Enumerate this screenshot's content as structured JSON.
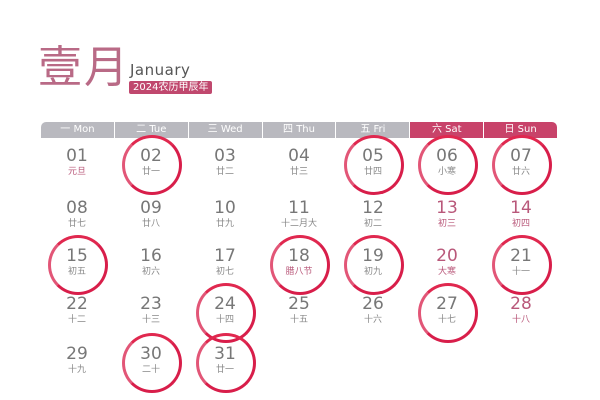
{
  "header": {
    "month_cn": "壹月",
    "month_en": "January",
    "year_badge": "2024农历甲辰年"
  },
  "weekdays": [
    {
      "label": "一 Mon",
      "weekend": false
    },
    {
      "label": "二 Tue",
      "weekend": false
    },
    {
      "label": "三 Wed",
      "weekend": false
    },
    {
      "label": "四 Thu",
      "weekend": false
    },
    {
      "label": "五 Fri",
      "weekend": false
    },
    {
      "label": "六 Sat",
      "weekend": true
    },
    {
      "label": "日 Sun",
      "weekend": true
    }
  ],
  "colors": {
    "accent": "#c8436a",
    "circle": "#d81e4a",
    "header_grey": "#b9b9bf"
  },
  "days": [
    {
      "day": "01",
      "lunar": "元旦",
      "circled": false,
      "pink": false,
      "lunar_pink": true
    },
    {
      "day": "02",
      "lunar": "廿一",
      "circled": true,
      "pink": false
    },
    {
      "day": "03",
      "lunar": "廿二",
      "circled": false,
      "pink": false
    },
    {
      "day": "04",
      "lunar": "廿三",
      "circled": false,
      "pink": false
    },
    {
      "day": "05",
      "lunar": "廿四",
      "circled": true,
      "pink": false
    },
    {
      "day": "06",
      "lunar": "小寒",
      "circled": true,
      "pink": false
    },
    {
      "day": "07",
      "lunar": "廿六",
      "circled": true,
      "pink": false
    },
    {
      "day": "08",
      "lunar": "廿七",
      "circled": false,
      "pink": false
    },
    {
      "day": "09",
      "lunar": "廿八",
      "circled": false,
      "pink": false
    },
    {
      "day": "10",
      "lunar": "廿九",
      "circled": false,
      "pink": false
    },
    {
      "day": "11",
      "lunar": "十二月大",
      "circled": false,
      "pink": false
    },
    {
      "day": "12",
      "lunar": "初二",
      "circled": false,
      "pink": false
    },
    {
      "day": "13",
      "lunar": "初三",
      "circled": false,
      "pink": true
    },
    {
      "day": "14",
      "lunar": "初四",
      "circled": false,
      "pink": true
    },
    {
      "day": "15",
      "lunar": "初五",
      "circled": true,
      "pink": false
    },
    {
      "day": "16",
      "lunar": "初六",
      "circled": false,
      "pink": false
    },
    {
      "day": "17",
      "lunar": "初七",
      "circled": false,
      "pink": false
    },
    {
      "day": "18",
      "lunar": "腊八节",
      "circled": true,
      "pink": false,
      "lunar_pink": true
    },
    {
      "day": "19",
      "lunar": "初九",
      "circled": true,
      "pink": false
    },
    {
      "day": "20",
      "lunar": "大寒",
      "circled": false,
      "pink": true,
      "lunar_pink": true
    },
    {
      "day": "21",
      "lunar": "十一",
      "circled": true,
      "pink": false
    },
    {
      "day": "22",
      "lunar": "十二",
      "circled": false,
      "pink": false
    },
    {
      "day": "23",
      "lunar": "十三",
      "circled": false,
      "pink": false
    },
    {
      "day": "24",
      "lunar": "十四",
      "circled": true,
      "pink": false
    },
    {
      "day": "25",
      "lunar": "十五",
      "circled": false,
      "pink": false
    },
    {
      "day": "26",
      "lunar": "十六",
      "circled": false,
      "pink": false
    },
    {
      "day": "27",
      "lunar": "十七",
      "circled": true,
      "pink": false
    },
    {
      "day": "28",
      "lunar": "十八",
      "circled": false,
      "pink": true
    },
    {
      "day": "29",
      "lunar": "十九",
      "circled": false,
      "pink": false
    },
    {
      "day": "30",
      "lunar": "二十",
      "circled": true,
      "pink": false
    },
    {
      "day": "31",
      "lunar": "廿一",
      "circled": true,
      "pink": false
    }
  ]
}
